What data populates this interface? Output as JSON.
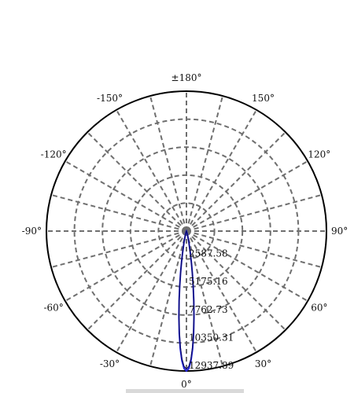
{
  "chart_data": {
    "type": "polar",
    "angle_unit": "degrees",
    "zero_direction": "bottom",
    "angle_labels": [
      {
        "angle": 180,
        "text": "±180°"
      },
      {
        "angle": 150,
        "text": "150°"
      },
      {
        "angle": -150,
        "text": "-150°"
      },
      {
        "angle": 120,
        "text": "120°"
      },
      {
        "angle": -120,
        "text": "-120°"
      },
      {
        "angle": 90,
        "text": "90°"
      },
      {
        "angle": -90,
        "text": "-90°"
      },
      {
        "angle": 60,
        "text": "60°"
      },
      {
        "angle": -60,
        "text": "-60°"
      },
      {
        "angle": 30,
        "text": "30°"
      },
      {
        "angle": -30,
        "text": "-30°"
      },
      {
        "angle": 0,
        "text": "0°"
      }
    ],
    "spoke_step_deg": 15,
    "rmax": 12937.89,
    "rings": [
      {
        "value": 2587.58,
        "label": "2587.58"
      },
      {
        "value": 5175.16,
        "label": "5175.16"
      },
      {
        "value": 7762.73,
        "label": "7762.73"
      },
      {
        "value": 10350.31,
        "label": "10350.31"
      },
      {
        "value": 12937.89,
        "label": "12937.89"
      }
    ],
    "grid": true,
    "colors": {
      "curve": "#2323d6",
      "grid": "#6f6f6f",
      "outline": "#000000"
    },
    "series": [
      {
        "points": [
          {
            "angle": 0,
            "r": 12937.89
          },
          {
            "angle": 1,
            "r": 12700
          },
          {
            "angle": 2,
            "r": 12000
          },
          {
            "angle": 3,
            "r": 10900
          },
          {
            "angle": 4,
            "r": 9500
          },
          {
            "angle": 5,
            "r": 8000
          },
          {
            "angle": 6,
            "r": 6500
          },
          {
            "angle": 7,
            "r": 5100
          },
          {
            "angle": 8,
            "r": 3900
          },
          {
            "angle": 9,
            "r": 2900
          },
          {
            "angle": 10,
            "r": 2100
          },
          {
            "angle": 12,
            "r": 1100
          },
          {
            "angle": 14,
            "r": 560
          },
          {
            "angle": 17,
            "r": 230
          },
          {
            "angle": 20,
            "r": 100
          },
          {
            "angle": 25,
            "r": 30
          },
          {
            "angle": 30,
            "r": 0
          }
        ]
      }
    ]
  }
}
